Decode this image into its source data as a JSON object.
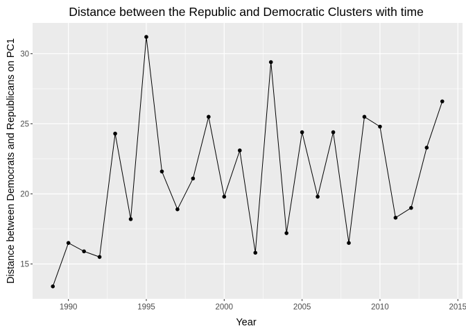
{
  "chart_data": {
    "type": "line",
    "title": "Distance between the Republic and Democratic Clusters with time",
    "xlabel": "Year",
    "ylabel": "Distance between Democrats and Republicans on PC1",
    "xlim": [
      1987.7,
      2015.3
    ],
    "ylim": [
      12.5,
      32.2
    ],
    "xticks": [
      1990,
      1995,
      2000,
      2005,
      2010,
      2015
    ],
    "yticks": [
      15,
      20,
      25,
      30
    ],
    "xminor": [
      1992.5,
      1997.5,
      2002.5,
      2007.5,
      2012.5
    ],
    "yminor": [
      12.5,
      17.5,
      22.5,
      27.5
    ],
    "grid": true,
    "legend": "none",
    "colors": {
      "panel": "#ebebeb",
      "grid": "#ffffff",
      "line": "#000000",
      "point": "#000000"
    },
    "series": [
      {
        "x": [
          1989,
          1990,
          1991,
          1992,
          1993,
          1994,
          1995,
          1996,
          1997,
          1998,
          1999,
          2000,
          2001,
          2002,
          2003,
          2004,
          2005,
          2006,
          2007,
          2008,
          2009,
          2010,
          2011,
          2012,
          2013,
          2014
        ],
        "y": [
          13.4,
          16.5,
          15.9,
          15.5,
          24.3,
          18.2,
          31.2,
          21.6,
          18.9,
          21.1,
          25.5,
          19.8,
          23.1,
          15.8,
          29.4,
          17.2,
          24.4,
          19.8,
          24.4,
          16.5,
          25.5,
          24.8,
          18.3,
          19.0,
          23.3,
          26.6
        ]
      }
    ]
  }
}
